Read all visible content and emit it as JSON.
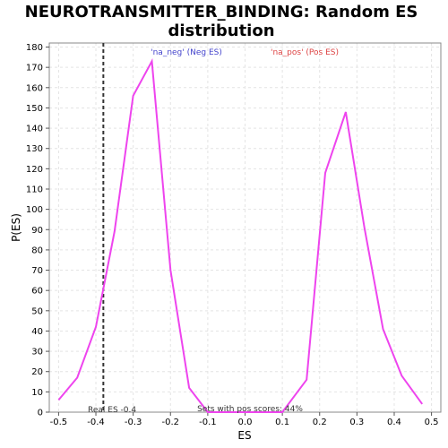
{
  "chart_data": {
    "type": "line",
    "title_line1": "NEUROTRANSMITTER_BINDING: Random ES",
    "title_line2": "distribution",
    "xlabel": "ES",
    "ylabel": "P(ES)",
    "xlim": [
      -0.525,
      0.525
    ],
    "ylim": [
      0,
      182
    ],
    "x_ticks": [
      -0.5,
      -0.4,
      -0.3,
      -0.2,
      -0.1,
      0.0,
      0.1,
      0.2,
      0.3,
      0.4,
      0.5
    ],
    "x_tick_labels": [
      "-0.5",
      "-0.4",
      "-0.3",
      "-0.2",
      "-0.1",
      "0.0",
      "0.1",
      "0.2",
      "0.3",
      "0.4",
      "0.5"
    ],
    "y_ticks": [
      0,
      10,
      20,
      30,
      40,
      50,
      60,
      70,
      80,
      90,
      100,
      110,
      120,
      130,
      140,
      150,
      160,
      170,
      180
    ],
    "y_tick_labels": [
      "0",
      "10",
      "20",
      "30",
      "40",
      "50",
      "60",
      "70",
      "80",
      "90",
      "100",
      "110",
      "120",
      "130",
      "140",
      "150",
      "160",
      "170",
      "180"
    ],
    "grid": true,
    "series": [
      {
        "color": "#ee44ee",
        "points": [
          [
            -0.5,
            6
          ],
          [
            -0.45,
            17
          ],
          [
            -0.4,
            42
          ],
          [
            -0.35,
            89
          ],
          [
            -0.3,
            156
          ],
          [
            -0.25,
            173
          ],
          [
            -0.2,
            70
          ],
          [
            -0.15,
            12
          ],
          [
            -0.1,
            0
          ],
          [
            -0.05,
            0
          ],
          [
            0.0,
            0
          ],
          [
            0.05,
            0
          ],
          [
            0.1,
            0
          ],
          [
            0.165,
            16
          ],
          [
            0.215,
            118
          ],
          [
            0.27,
            148
          ],
          [
            0.32,
            91
          ],
          [
            0.37,
            41
          ],
          [
            0.42,
            18
          ],
          [
            0.475,
            4
          ]
        ]
      }
    ],
    "real_es": {
      "value": -0.38,
      "label": "Real ES -0.4",
      "color": "#333333"
    },
    "annotations": {
      "neg": {
        "text": "'na_neg' (Neg ES)",
        "color": "#4444cc"
      },
      "pos": {
        "text": "'na_pos' (Pos ES)",
        "color": "#dd4444"
      },
      "sets": {
        "text": "Sets with pos scores: 44%",
        "color": "#333333"
      }
    }
  }
}
